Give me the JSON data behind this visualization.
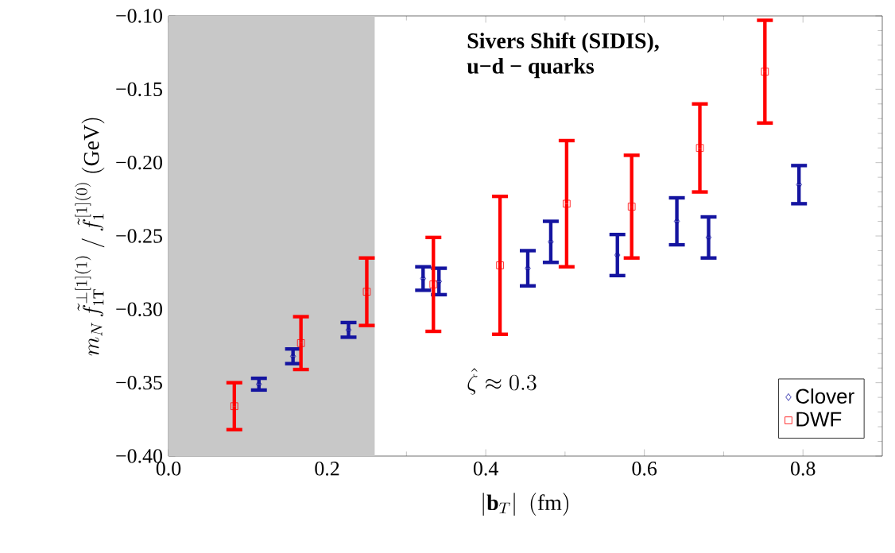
{
  "chart_data": {
    "type": "scatter",
    "title": "Sivers Shift (SIDIS),",
    "subtitle": "u−d − quarks",
    "xlabel": "|\\mathbf{b}_T|\\ \\ (\\mathrm{fm})",
    "ylabel": "m_N\\,\\tilde{f}_{1\\mathrm{T}}^{\\perp[1](1)}\\ /\\ \\tilde{f}_1^{[1](0)}\\ (\\mathrm{GeV})",
    "annotations": [
      "\\hat{\\zeta}\\approx 0.3"
    ],
    "xlim": [
      0,
      0.9
    ],
    "ylim": [
      -0.4,
      -0.1
    ],
    "xticks": [
      {
        "value": 0,
        "label": "0.0"
      },
      0.2,
      0.4,
      0.6,
      0.8
    ],
    "yticks": [
      {
        "value": -0.4,
        "label": "−0.40"
      },
      {
        "value": -0.35,
        "label": "−0.35"
      },
      {
        "value": -0.3,
        "label": "−0.30"
      },
      {
        "value": -0.25,
        "label": "−0.25"
      },
      {
        "value": -0.2,
        "label": "−0.20"
      },
      {
        "value": -0.15,
        "label": "−0.15"
      },
      {
        "value": -0.1,
        "label": "−0.10"
      }
    ],
    "bands": [
      {
        "axis": "x",
        "from": 0,
        "to": 0.26,
        "color": "#c8c8c8"
      }
    ],
    "legend": "bottom right",
    "series": [
      {
        "name": "Clover",
        "color": "#1414a0",
        "marker": "diamond",
        "x": [
          0.114,
          0.157,
          0.227,
          0.321,
          0.341,
          0.453,
          0.482,
          0.566,
          0.641,
          0.681,
          0.795
        ],
        "values": [
          -0.351,
          -0.332,
          -0.314,
          -0.279,
          -0.281,
          -0.272,
          -0.254,
          -0.263,
          -0.24,
          -0.251,
          -0.215
        ],
        "errors": [
          0.004,
          0.005,
          0.005,
          0.008,
          0.009,
          0.012,
          0.014,
          0.014,
          0.016,
          0.014,
          0.013
        ]
      },
      {
        "name": "DWF",
        "color": "#ff0000",
        "marker": "square",
        "x": [
          0.083,
          0.167,
          0.25,
          0.334,
          0.418,
          0.502,
          0.584,
          0.67,
          0.752
        ],
        "values": [
          -0.366,
          -0.323,
          -0.288,
          -0.283,
          -0.27,
          -0.228,
          -0.23,
          -0.19,
          -0.138
        ],
        "errors": [
          0.016,
          0.018,
          0.023,
          0.032,
          0.047,
          0.043,
          0.035,
          0.03,
          0.035
        ]
      }
    ]
  }
}
